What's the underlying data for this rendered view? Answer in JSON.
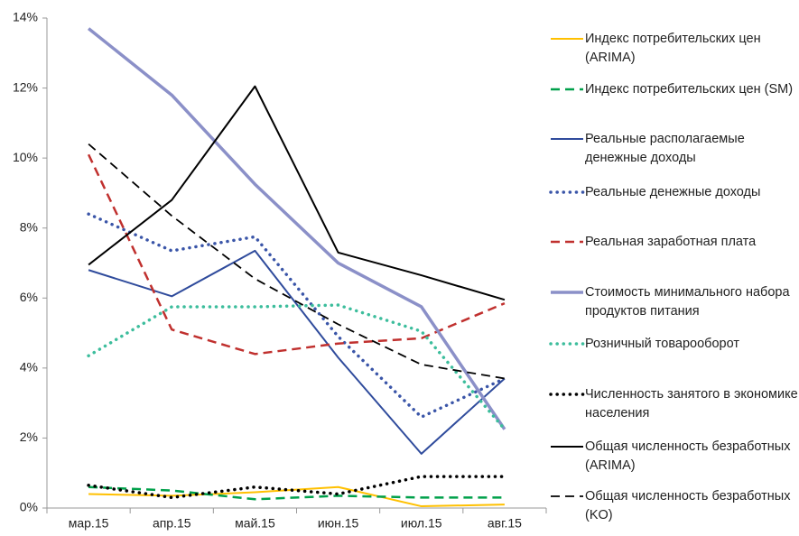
{
  "chart_data": {
    "type": "line",
    "categories": [
      "мар.15",
      "апр.15",
      "май.15",
      "июн.15",
      "июл.15",
      "авг.15"
    ],
    "ylim": [
      0,
      14
    ],
    "yticks": [
      {
        "value": 0,
        "label": "0%"
      },
      {
        "value": 2,
        "label": "2%"
      },
      {
        "value": 4,
        "label": "4%"
      },
      {
        "value": 6,
        "label": "6%"
      },
      {
        "value": 8,
        "label": "8%"
      },
      {
        "value": 10,
        "label": "10%"
      },
      {
        "value": 12,
        "label": "12%"
      },
      {
        "value": 14,
        "label": "14%"
      }
    ],
    "grid": false,
    "legend": "right",
    "series": [
      {
        "name": "Индекс потребительских цен (ARIMA)",
        "color": "#ffc000",
        "style": "solid",
        "width": 2,
        "values": [
          0.4,
          0.35,
          0.45,
          0.6,
          0.05,
          0.1
        ]
      },
      {
        "name": "Индекс потребительских цен (SM)",
        "color": "#00a04a",
        "style": "dashed",
        "width": 2.5,
        "values": [
          0.6,
          0.5,
          0.25,
          0.35,
          0.3,
          0.3
        ]
      },
      {
        "name": "Реальные располагаемые денежные доходы",
        "color": "#2f4b9c",
        "style": "solid",
        "width": 2,
        "values": [
          6.8,
          6.05,
          7.35,
          4.3,
          1.55,
          3.7
        ]
      },
      {
        "name": "Реальные денежные доходы",
        "color": "#3a55a8",
        "style": "dotted",
        "width": 3.5,
        "values": [
          8.4,
          7.35,
          7.75,
          4.9,
          2.6,
          3.7
        ]
      },
      {
        "name": "Реальная заработная плата",
        "color": "#c0302e",
        "style": "dashed",
        "width": 2.5,
        "values": [
          10.1,
          5.1,
          4.4,
          4.7,
          4.85,
          5.85
        ]
      },
      {
        "name": "Стоимость минимального набора продуктов питания",
        "color": "#8b90c8",
        "style": "solid",
        "width": 3.5,
        "values": [
          13.7,
          11.8,
          9.25,
          7.0,
          5.75,
          2.25
        ]
      },
      {
        "name": "Розничный товарооборот",
        "color": "#3cbd9c",
        "style": "dotted",
        "width": 3.5,
        "values": [
          4.35,
          5.75,
          5.75,
          5.8,
          5.05,
          2.25
        ]
      },
      {
        "name": "Численность занятого в экономике населения",
        "color": "#000000",
        "style": "dotted",
        "width": 3.5,
        "values": [
          0.65,
          0.3,
          0.6,
          0.4,
          0.9,
          0.9
        ]
      },
      {
        "name": "Общая численность безработных (ARIMA)",
        "color": "#000000",
        "style": "solid",
        "width": 2,
        "values": [
          6.95,
          8.8,
          12.05,
          7.3,
          6.65,
          5.95
        ]
      },
      {
        "name": "Общая численность безработных (KO)",
        "color": "#000000",
        "style": "dashed",
        "width": 1.8,
        "values": [
          10.4,
          8.35,
          6.55,
          5.25,
          4.1,
          3.7
        ]
      }
    ]
  }
}
